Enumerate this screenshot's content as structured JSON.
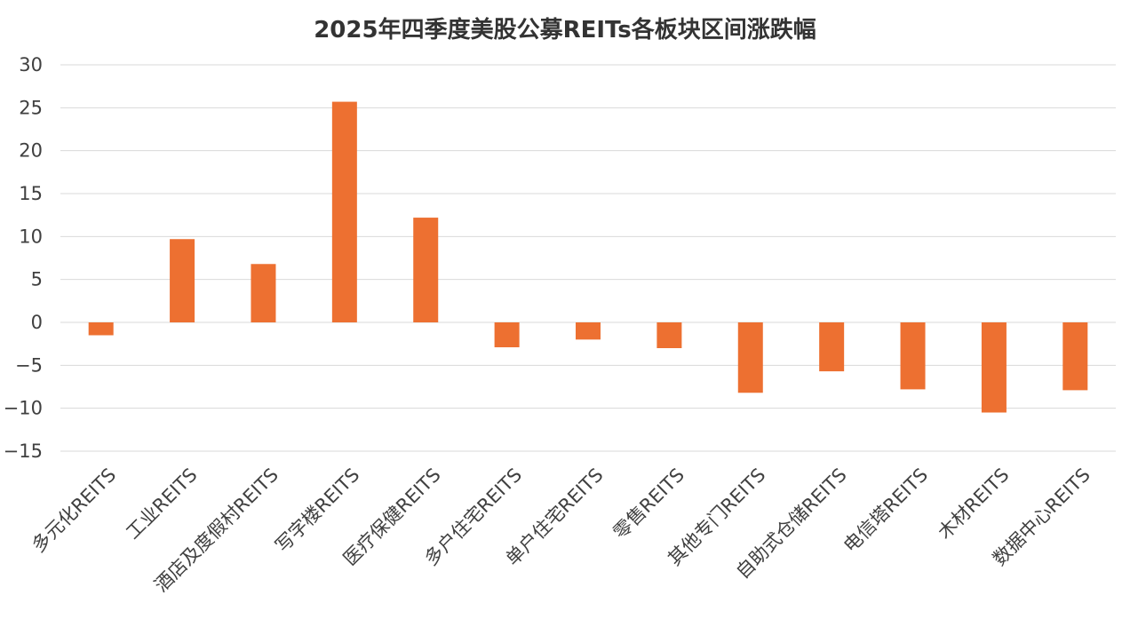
{
  "chart_data": {
    "type": "bar",
    "title": "2025年四季度美股公募REITs各板块区间涨跌幅",
    "xlabel": "",
    "ylabel": "",
    "ylim": [
      -15,
      30
    ],
    "yticks": [
      30,
      25,
      20,
      15,
      10,
      5,
      0,
      -5,
      -10,
      -15
    ],
    "grid": true,
    "legend": "none",
    "bar_color": "#ED7031",
    "categories": [
      "多元化REITS",
      "工业REITS",
      "酒店及度假村REITS",
      "写字楼REITS",
      "医疗保健REITS",
      "多户住宅REITS",
      "单户住宅REITS",
      "零售REITS",
      "其他专门REITS",
      "自助式仓储REITS",
      "电信塔REITS",
      "木材REITS",
      "数据中心REITS"
    ],
    "values": [
      -1.5,
      9.7,
      6.8,
      25.7,
      12.2,
      -2.9,
      -2.0,
      -3.0,
      -8.2,
      -5.7,
      -7.8,
      -10.5,
      -7.9
    ]
  }
}
